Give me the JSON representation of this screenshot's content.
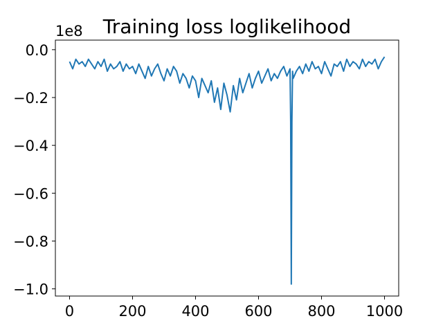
{
  "chart_data": {
    "type": "line",
    "title": "Training loss loglikelihood",
    "xlabel": "",
    "ylabel": "",
    "y_offset_label": "1e8",
    "xlim": [
      -45,
      1045
    ],
    "ylim": [
      -1.03,
      0.04
    ],
    "x_ticks": [
      0,
      200,
      400,
      600,
      800,
      1000
    ],
    "x_tick_labels": [
      "0",
      "200",
      "400",
      "600",
      "800",
      "1000"
    ],
    "y_ticks": [
      0.0,
      -0.2,
      -0.4,
      -0.6,
      -0.8,
      -1.0
    ],
    "y_tick_labels": [
      "0.0",
      "−0.2",
      "−0.4",
      "−0.6",
      "−0.8",
      "−1.0"
    ],
    "grid": false,
    "series": [
      {
        "color": "#1f77b4",
        "x": [
          0,
          10,
          20,
          30,
          40,
          50,
          60,
          70,
          80,
          90,
          100,
          110,
          120,
          130,
          140,
          150,
          160,
          170,
          180,
          190,
          200,
          210,
          220,
          230,
          240,
          250,
          260,
          270,
          280,
          290,
          300,
          310,
          320,
          330,
          340,
          350,
          360,
          370,
          380,
          390,
          400,
          410,
          420,
          430,
          440,
          450,
          460,
          470,
          480,
          490,
          500,
          510,
          520,
          530,
          540,
          550,
          560,
          570,
          580,
          590,
          600,
          610,
          620,
          630,
          640,
          650,
          660,
          670,
          680,
          690,
          700,
          702,
          704,
          706,
          708,
          710,
          720,
          730,
          740,
          750,
          760,
          770,
          780,
          790,
          800,
          810,
          820,
          830,
          840,
          850,
          860,
          870,
          880,
          890,
          900,
          910,
          920,
          930,
          940,
          950,
          960,
          970,
          980,
          990,
          1000
        ],
        "values": [
          -0.05,
          -0.08,
          -0.04,
          -0.06,
          -0.05,
          -0.07,
          -0.04,
          -0.06,
          -0.08,
          -0.05,
          -0.07,
          -0.04,
          -0.09,
          -0.06,
          -0.08,
          -0.07,
          -0.05,
          -0.09,
          -0.06,
          -0.08,
          -0.07,
          -0.1,
          -0.06,
          -0.09,
          -0.12,
          -0.07,
          -0.11,
          -0.08,
          -0.06,
          -0.1,
          -0.13,
          -0.08,
          -0.11,
          -0.07,
          -0.09,
          -0.14,
          -0.1,
          -0.12,
          -0.16,
          -0.11,
          -0.13,
          -0.2,
          -0.12,
          -0.15,
          -0.18,
          -0.13,
          -0.22,
          -0.16,
          -0.25,
          -0.14,
          -0.19,
          -0.26,
          -0.15,
          -0.21,
          -0.12,
          -0.18,
          -0.14,
          -0.1,
          -0.16,
          -0.12,
          -0.09,
          -0.14,
          -0.11,
          -0.08,
          -0.13,
          -0.1,
          -0.12,
          -0.09,
          -0.07,
          -0.11,
          -0.08,
          -0.3,
          -0.98,
          -0.3,
          -0.09,
          -0.12,
          -0.09,
          -0.07,
          -0.1,
          -0.06,
          -0.09,
          -0.05,
          -0.08,
          -0.07,
          -0.1,
          -0.05,
          -0.08,
          -0.11,
          -0.06,
          -0.07,
          -0.05,
          -0.09,
          -0.04,
          -0.07,
          -0.05,
          -0.06,
          -0.08,
          -0.04,
          -0.07,
          -0.05,
          -0.06,
          -0.04,
          -0.08,
          -0.05,
          -0.03
        ]
      }
    ]
  }
}
